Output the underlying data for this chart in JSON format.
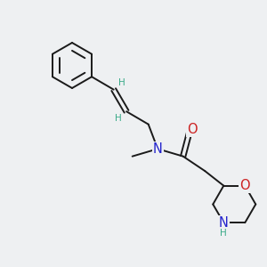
{
  "bg_color": "#eef0f2",
  "bond_color": "#1a1a1a",
  "N_color": "#2222cc",
  "O_color": "#cc2020",
  "H_color": "#3aaa88",
  "figsize": [
    3.0,
    3.0
  ],
  "dpi": 100,
  "xlim": [
    0,
    10
  ],
  "ylim": [
    0,
    10
  ]
}
